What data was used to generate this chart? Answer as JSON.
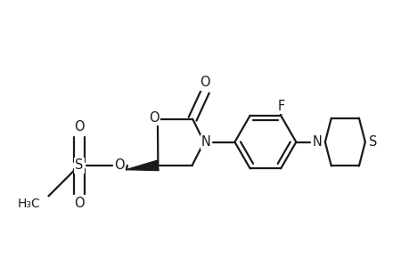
{
  "bg_color": "#ffffff",
  "line_color": "#1a1a1a",
  "line_width": 1.6,
  "font_size": 10.5,
  "figsize": [
    4.6,
    3.0
  ],
  "dpi": 100,
  "xlim": [
    -1.0,
    8.5
  ],
  "ylim": [
    -2.5,
    3.0
  ]
}
